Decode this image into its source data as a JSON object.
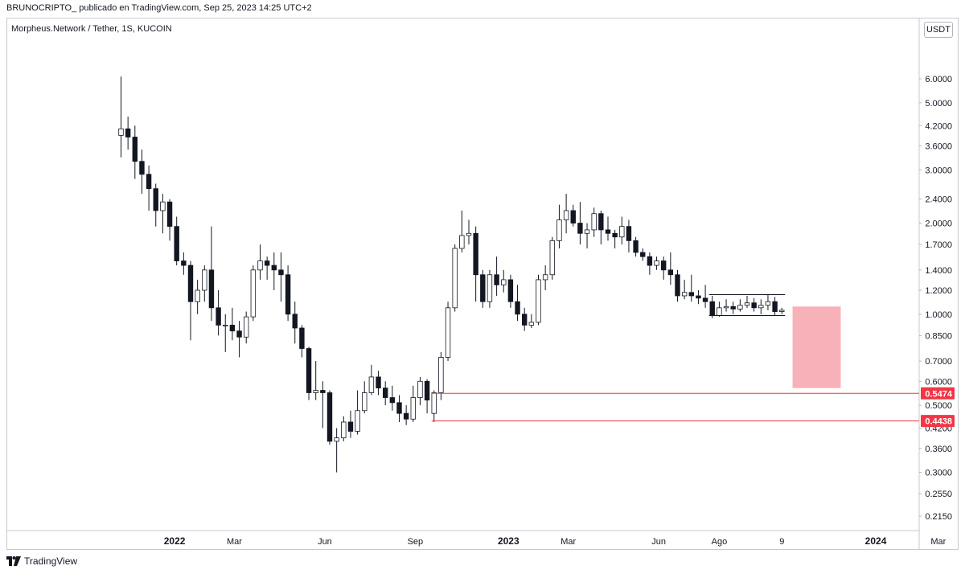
{
  "header": {
    "published_line": "BRUNOCRIPTO_  publicado en TradingView.com, Sep 25, 2023 14:25 UTC+2"
  },
  "symbol_line": "Morpheus.Network / Tether, 1S, KUCOIN",
  "currency_button": "USDT",
  "footer": {
    "brand": "TradingView",
    "logo_icon": "tradingview-logo-icon"
  },
  "colors": {
    "up": "#ffffff",
    "down": "#131722",
    "wick": "#131722",
    "level": "#f23645",
    "zone": "#f7a8b0"
  },
  "chart_data": {
    "type": "candlestick",
    "y_scale": "log",
    "ylim": [
      0.195,
      6.5
    ],
    "y_ticks": [
      "6.0000",
      "5.0000",
      "4.2000",
      "3.6000",
      "3.0000",
      "2.4000",
      "2.0000",
      "1.7000",
      "1.4000",
      "1.2000",
      "1.0000",
      "0.8500",
      "0.7000",
      "0.6000",
      "0.5000",
      "0.4200",
      "0.3600",
      "0.3000",
      "0.2550",
      "0.2150"
    ],
    "x_ticks": [
      {
        "label": "2022",
        "index": 7.7,
        "bold": true
      },
      {
        "label": "Mar",
        "index": 16.3,
        "bold": false
      },
      {
        "label": "Jun",
        "index": 29.3,
        "bold": false
      },
      {
        "label": "Sep",
        "index": 42.3,
        "bold": false
      },
      {
        "label": "2023",
        "index": 55.7,
        "bold": true
      },
      {
        "label": "Mar",
        "index": 64.3,
        "bold": false
      },
      {
        "label": "Jun",
        "index": 77.3,
        "bold": false
      },
      {
        "label": "Ago",
        "index": 86.0,
        "bold": false
      },
      {
        "label": "9",
        "index": 95.0,
        "bold": false
      },
      {
        "label": "2024",
        "index": 108.5,
        "bold": true
      },
      {
        "label": "Mar",
        "index": 117.5,
        "bold": false
      }
    ],
    "candles": [
      [
        3.9,
        4.1,
        6.1,
        3.3
      ],
      [
        4.1,
        3.85,
        4.5,
        3.5
      ],
      [
        3.85,
        3.2,
        4.2,
        2.8
      ],
      [
        3.2,
        2.9,
        3.5,
        2.5
      ],
      [
        2.9,
        2.6,
        3.1,
        2.2
      ],
      [
        2.6,
        2.2,
        2.7,
        1.95
      ],
      [
        2.2,
        2.35,
        2.5,
        1.85
      ],
      [
        2.35,
        1.95,
        2.4,
        1.75
      ],
      [
        1.95,
        1.5,
        2.1,
        1.45
      ],
      [
        1.5,
        1.45,
        1.6,
        1.35
      ],
      [
        1.45,
        1.1,
        1.5,
        0.82
      ],
      [
        1.1,
        1.2,
        1.3,
        1.0
      ],
      [
        1.2,
        1.4,
        1.45,
        1.1
      ],
      [
        1.4,
        1.05,
        1.95,
        0.95
      ],
      [
        1.05,
        0.92,
        1.2,
        0.85
      ],
      [
        0.92,
        0.92,
        1.0,
        0.75
      ],
      [
        0.92,
        0.88,
        1.05,
        0.82
      ],
      [
        0.88,
        0.84,
        0.95,
        0.72
      ],
      [
        0.84,
        0.98,
        1.02,
        0.8
      ],
      [
        0.98,
        1.4,
        1.45,
        0.95
      ],
      [
        1.4,
        1.5,
        1.7,
        1.3
      ],
      [
        1.5,
        1.45,
        1.55,
        1.3
      ],
      [
        1.45,
        1.4,
        1.6,
        1.2
      ],
      [
        1.4,
        1.35,
        1.6,
        1.1
      ],
      [
        1.35,
        1.0,
        1.45,
        0.95
      ],
      [
        1.0,
        0.9,
        1.1,
        0.8
      ],
      [
        0.9,
        0.77,
        0.92,
        0.72
      ],
      [
        0.77,
        0.55,
        0.78,
        0.52
      ],
      [
        0.55,
        0.56,
        0.7,
        0.52
      ],
      [
        0.56,
        0.55,
        0.6,
        0.42
      ],
      [
        0.55,
        0.38,
        0.56,
        0.37
      ],
      [
        0.38,
        0.39,
        0.42,
        0.3
      ],
      [
        0.39,
        0.44,
        0.46,
        0.38
      ],
      [
        0.44,
        0.41,
        0.48,
        0.39
      ],
      [
        0.41,
        0.48,
        0.56,
        0.4
      ],
      [
        0.48,
        0.55,
        0.6,
        0.47
      ],
      [
        0.55,
        0.62,
        0.68,
        0.54
      ],
      [
        0.62,
        0.57,
        0.65,
        0.54
      ],
      [
        0.57,
        0.53,
        0.6,
        0.5
      ],
      [
        0.53,
        0.51,
        0.58,
        0.48
      ],
      [
        0.51,
        0.47,
        0.54,
        0.44
      ],
      [
        0.47,
        0.45,
        0.5,
        0.43
      ],
      [
        0.45,
        0.53,
        0.58,
        0.44
      ],
      [
        0.53,
        0.6,
        0.62,
        0.5
      ],
      [
        0.6,
        0.52,
        0.61,
        0.47
      ],
      [
        0.47,
        0.55,
        0.56,
        0.44
      ],
      [
        0.55,
        0.72,
        0.75,
        0.52
      ],
      [
        0.72,
        1.05,
        1.1,
        0.7
      ],
      [
        1.05,
        1.65,
        1.7,
        1.02
      ],
      [
        1.65,
        1.82,
        2.2,
        1.6
      ],
      [
        1.82,
        1.85,
        2.05,
        1.7
      ],
      [
        1.85,
        1.35,
        1.95,
        1.1
      ],
      [
        1.35,
        1.1,
        1.4,
        1.05
      ],
      [
        1.1,
        1.35,
        1.4,
        1.05
      ],
      [
        1.35,
        1.25,
        1.55,
        1.15
      ],
      [
        1.25,
        1.3,
        1.4,
        1.18
      ],
      [
        1.3,
        1.1,
        1.35,
        1.05
      ],
      [
        1.1,
        1.0,
        1.25,
        0.95
      ],
      [
        1.0,
        0.92,
        1.05,
        0.88
      ],
      [
        0.92,
        0.94,
        1.0,
        0.9
      ],
      [
        0.94,
        1.3,
        1.35,
        0.92
      ],
      [
        1.3,
        1.35,
        1.45,
        1.2
      ],
      [
        1.35,
        1.75,
        1.8,
        1.3
      ],
      [
        1.75,
        2.05,
        2.3,
        1.65
      ],
      [
        2.05,
        2.2,
        2.5,
        1.85
      ],
      [
        2.2,
        2.0,
        2.3,
        1.95
      ],
      [
        2.0,
        1.85,
        2.35,
        1.7
      ],
      [
        1.85,
        1.9,
        2.0,
        1.65
      ],
      [
        1.9,
        2.15,
        2.25,
        1.8
      ],
      [
        2.15,
        1.9,
        2.2,
        1.7
      ],
      [
        1.9,
        1.85,
        2.1,
        1.75
      ],
      [
        1.85,
        1.8,
        1.9,
        1.65
      ],
      [
        1.8,
        1.95,
        2.1,
        1.7
      ],
      [
        1.95,
        1.75,
        2.05,
        1.6
      ],
      [
        1.75,
        1.6,
        1.8,
        1.55
      ],
      [
        1.6,
        1.55,
        1.65,
        1.5
      ],
      [
        1.55,
        1.45,
        1.6,
        1.35
      ],
      [
        1.45,
        1.5,
        1.55,
        1.4
      ],
      [
        1.5,
        1.4,
        1.55,
        1.3
      ],
      [
        1.4,
        1.35,
        1.6,
        1.25
      ],
      [
        1.35,
        1.15,
        1.4,
        1.1
      ],
      [
        1.15,
        1.18,
        1.3,
        1.12
      ],
      [
        1.18,
        1.15,
        1.35,
        1.1
      ],
      [
        1.15,
        1.13,
        1.2,
        1.08
      ],
      [
        1.13,
        1.1,
        1.25,
        1.05
      ],
      [
        1.1,
        0.99,
        1.15,
        0.97
      ],
      [
        0.99,
        1.05,
        1.1,
        0.98
      ],
      [
        1.05,
        1.06,
        1.12,
        1.02
      ],
      [
        1.06,
        1.04,
        1.1,
        1.0
      ],
      [
        1.04,
        1.07,
        1.12,
        1.02
      ],
      [
        1.07,
        1.09,
        1.15,
        1.05
      ],
      [
        1.09,
        1.05,
        1.13,
        1.02
      ],
      [
        1.05,
        1.07,
        1.12,
        1.0
      ],
      [
        1.07,
        1.1,
        1.16,
        1.03
      ],
      [
        1.1,
        1.02,
        1.14,
        0.99
      ],
      [
        1.02,
        1.03,
        1.05,
        1.0
      ]
    ],
    "levels": [
      {
        "price": 0.5474,
        "label": "0.5474",
        "from_index": 45
      },
      {
        "price": 0.4438,
        "label": "0.4438",
        "from_index": 45
      }
    ],
    "range_box": {
      "from_index": 85,
      "to_index": 95,
      "top": 1.16,
      "bottom": 0.99
    },
    "zone": {
      "from_index": 97,
      "to_index": 103,
      "top": 1.06,
      "bottom": 0.57
    }
  }
}
